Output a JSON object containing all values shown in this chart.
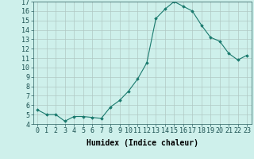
{
  "x": [
    0,
    1,
    2,
    3,
    4,
    5,
    6,
    7,
    8,
    9,
    10,
    11,
    12,
    13,
    14,
    15,
    16,
    17,
    18,
    19,
    20,
    21,
    22,
    23
  ],
  "y": [
    5.5,
    5.0,
    5.0,
    4.3,
    4.8,
    4.8,
    4.7,
    4.6,
    5.8,
    6.5,
    7.5,
    8.8,
    10.5,
    15.2,
    16.2,
    17.0,
    16.5,
    16.0,
    14.5,
    13.2,
    12.8,
    11.5,
    10.8,
    11.3
  ],
  "line_color": "#1a7a6e",
  "marker": "D",
  "marker_size": 1.8,
  "bg_color": "#cef0eb",
  "grid_color": "#b0c8c4",
  "xlabel": "Humidex (Indice chaleur)",
  "ylim": [
    4,
    17
  ],
  "xlim_min": -0.5,
  "xlim_max": 23.5,
  "yticks": [
    4,
    5,
    6,
    7,
    8,
    9,
    10,
    11,
    12,
    13,
    14,
    15,
    16,
    17
  ],
  "xticks": [
    0,
    1,
    2,
    3,
    4,
    5,
    6,
    7,
    8,
    9,
    10,
    11,
    12,
    13,
    14,
    15,
    16,
    17,
    18,
    19,
    20,
    21,
    22,
    23
  ],
  "xlabel_fontsize": 7,
  "tick_fontsize": 6,
  "line_width": 0.8
}
